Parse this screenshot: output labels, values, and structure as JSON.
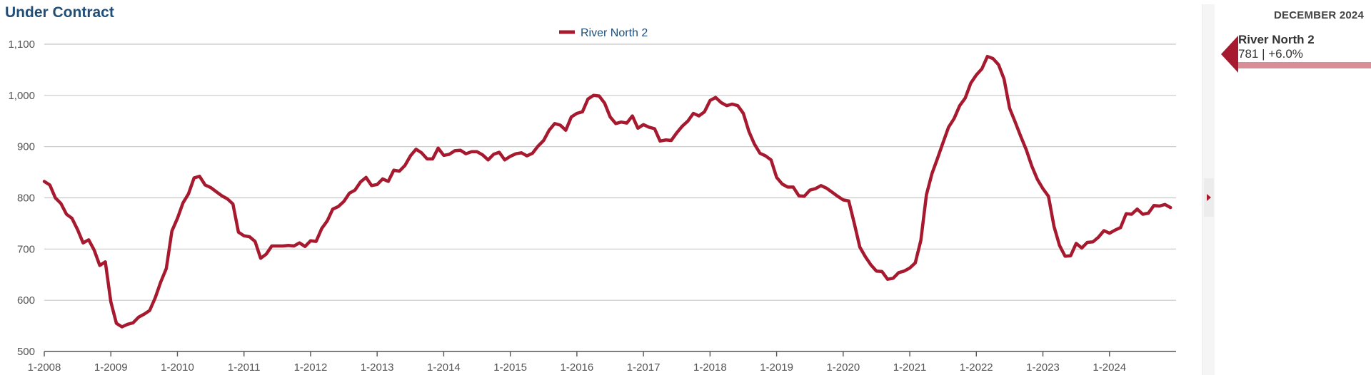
{
  "chart_data": {
    "type": "line",
    "title": "Under Contract",
    "xlabel": "",
    "ylabel": "",
    "ylim": [
      500,
      1100
    ],
    "y_ticks": [
      "500",
      "600",
      "700",
      "800",
      "900",
      "1,000",
      "1,100"
    ],
    "x_ticks": [
      "1-2008",
      "1-2009",
      "1-2010",
      "1-2011",
      "1-2012",
      "1-2013",
      "1-2014",
      "1-2015",
      "1-2016",
      "1-2017",
      "1-2018",
      "1-2019",
      "1-2020",
      "1-2021",
      "1-2022",
      "1-2023",
      "1-2024"
    ],
    "x_start": "1-2008",
    "x_end": "12-2024",
    "grid": true,
    "legend": "top-center",
    "series": [
      {
        "name": "River North 2",
        "color": "#a6192e",
        "values": [
          832,
          825,
          800,
          789,
          768,
          760,
          738,
          712,
          718,
          698,
          668,
          675,
          597,
          555,
          548,
          553,
          556,
          567,
          573,
          580,
          605,
          636,
          662,
          735,
          760,
          790,
          808,
          839,
          842,
          825,
          820,
          812,
          804,
          798,
          788,
          733,
          726,
          724,
          715,
          682,
          690,
          706,
          706,
          706,
          707,
          706,
          712,
          705,
          716,
          715,
          740,
          755,
          778,
          783,
          793,
          809,
          815,
          831,
          840,
          824,
          826,
          837,
          832,
          854,
          852,
          863,
          882,
          895,
          888,
          876,
          876,
          897,
          883,
          885,
          892,
          893,
          886,
          890,
          890,
          884,
          874,
          885,
          889,
          874,
          881,
          886,
          888,
          882,
          887,
          901,
          912,
          932,
          945,
          942,
          932,
          958,
          965,
          968,
          993,
          1000,
          999,
          985,
          958,
          945,
          948,
          946,
          960,
          936,
          943,
          938,
          935,
          911,
          913,
          912,
          927,
          940,
          950,
          965,
          960,
          968,
          990,
          996,
          986,
          980,
          983,
          980,
          965,
          930,
          905,
          887,
          882,
          874,
          840,
          827,
          821,
          821,
          804,
          803,
          815,
          818,
          824,
          819,
          811,
          803,
          796,
          794,
          750,
          704,
          685,
          669,
          657,
          656,
          641,
          643,
          654,
          657,
          663,
          673,
          717,
          806,
          847,
          877,
          908,
          938,
          955,
          980,
          995,
          1024,
          1040,
          1052,
          1076,
          1072,
          1060,
          1032,
          975,
          948,
          920,
          894,
          862,
          836,
          818,
          803,
          744,
          707,
          686,
          687,
          711,
          702,
          713,
          714,
          723,
          736,
          731,
          737,
          742,
          769,
          768,
          778,
          768,
          770,
          785,
          784,
          787,
          781
        ]
      }
    ]
  },
  "sidebar": {
    "date": "DECEMBER 2024",
    "series_name": "River North 2",
    "series_value": "781 | +6.0%"
  }
}
